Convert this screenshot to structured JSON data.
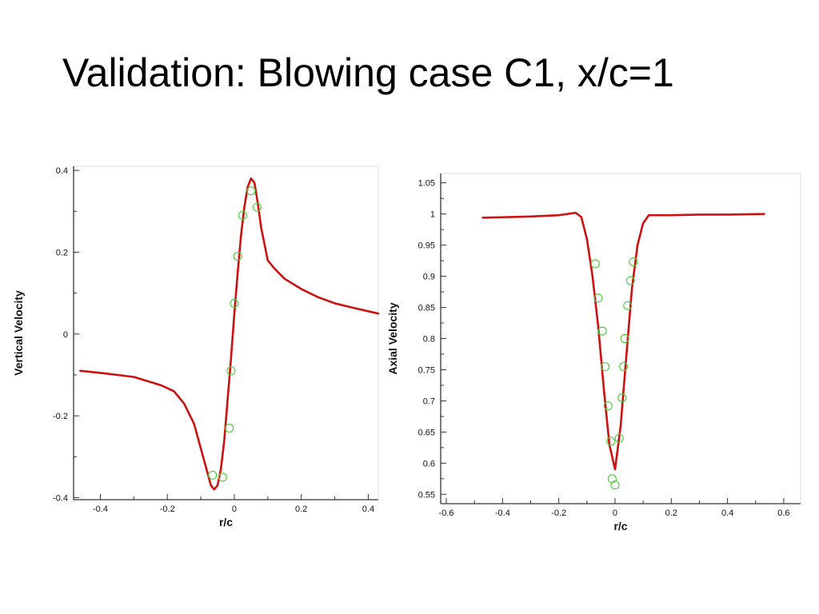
{
  "slide": {
    "title": "Validation: Blowing case C1, x/c=1"
  },
  "colors": {
    "curve": "#cc1111",
    "markers": "#55cc44",
    "axis": "#333333",
    "background": "#ffffff"
  },
  "chart_data": [
    {
      "type": "line",
      "title": "",
      "xlabel": "r/c",
      "ylabel": "Vertical Velocity",
      "xlim": [
        -0.48,
        0.43
      ],
      "ylim": [
        -0.405,
        0.41
      ],
      "xticks": [
        -0.4,
        -0.2,
        0,
        0.2,
        0.4
      ],
      "xtick_labels": [
        "-0.4",
        "-0.2",
        "0",
        "0.2",
        "0.4"
      ],
      "yticks": [
        -0.4,
        -0.2,
        0,
        0.2,
        0.4
      ],
      "ytick_labels": [
        "-0.4",
        "-0.2",
        "0",
        "0.2",
        "0.4"
      ],
      "grid": false,
      "series": [
        {
          "style": "line",
          "x": [
            -0.46,
            -0.4,
            -0.3,
            -0.22,
            -0.18,
            -0.15,
            -0.12,
            -0.1,
            -0.08,
            -0.07,
            -0.06,
            -0.05,
            -0.04,
            -0.03,
            -0.02,
            -0.01,
            0,
            0.01,
            0.02,
            0.03,
            0.04,
            0.05,
            0.06,
            0.07,
            0.08,
            0.1,
            0.12,
            0.15,
            0.2,
            0.25,
            0.3,
            0.35,
            0.43
          ],
          "y": [
            -0.09,
            -0.095,
            -0.105,
            -0.125,
            -0.14,
            -0.17,
            -0.22,
            -0.28,
            -0.34,
            -0.37,
            -0.38,
            -0.37,
            -0.33,
            -0.26,
            -0.16,
            -0.06,
            0.05,
            0.15,
            0.24,
            0.31,
            0.36,
            0.38,
            0.37,
            0.32,
            0.26,
            0.18,
            0.16,
            0.135,
            0.11,
            0.09,
            0.075,
            0.065,
            0.05
          ]
        },
        {
          "style": "markers",
          "x": [
            -0.065,
            -0.035,
            -0.015,
            -0.01,
            0.0,
            0.01,
            0.025,
            0.05,
            0.068
          ],
          "y": [
            -0.345,
            -0.35,
            -0.23,
            -0.09,
            0.075,
            0.19,
            0.29,
            0.35,
            0.31
          ]
        }
      ]
    },
    {
      "type": "line",
      "title": "",
      "xlabel": "r/c",
      "ylabel": "Axial Velocity",
      "xlim": [
        -0.62,
        0.66
      ],
      "ylim": [
        0.535,
        1.065
      ],
      "xticks": [
        -0.6,
        -0.4,
        -0.2,
        0,
        0.2,
        0.4,
        0.6
      ],
      "xtick_labels": [
        "-0.6",
        "-0.4",
        "-0.2",
        "0",
        "0.2",
        "0.4",
        "0.6"
      ],
      "yticks": [
        0.55,
        0.6,
        0.65,
        0.7,
        0.75,
        0.8,
        0.85,
        0.9,
        0.95,
        1,
        1.05
      ],
      "ytick_labels": [
        "0.55",
        "0.6",
        "0.65",
        "0.7",
        "0.75",
        "0.8",
        "0.85",
        "0.9",
        "0.95",
        "1",
        "1.05"
      ],
      "grid": false,
      "series": [
        {
          "style": "line",
          "x": [
            -0.47,
            -0.3,
            -0.2,
            -0.14,
            -0.12,
            -0.1,
            -0.08,
            -0.06,
            -0.04,
            -0.02,
            0,
            0.02,
            0.04,
            0.06,
            0.08,
            0.1,
            0.12,
            0.2,
            0.3,
            0.4,
            0.53
          ],
          "y": [
            0.994,
            0.996,
            0.998,
            1.002,
            0.995,
            0.96,
            0.9,
            0.82,
            0.72,
            0.63,
            0.59,
            0.66,
            0.77,
            0.88,
            0.95,
            0.985,
            0.998,
            0.998,
            0.999,
            0.999,
            1.0
          ]
        },
        {
          "style": "markers",
          "x": [
            -0.07,
            -0.06,
            -0.045,
            -0.035,
            -0.025,
            -0.015,
            -0.01,
            0.0,
            0.015,
            0.025,
            0.03,
            0.035,
            0.045,
            0.055,
            0.065
          ],
          "y": [
            0.92,
            0.865,
            0.812,
            0.755,
            0.692,
            0.635,
            0.575,
            0.565,
            0.64,
            0.705,
            0.755,
            0.8,
            0.853,
            0.893,
            0.923
          ]
        }
      ]
    }
  ]
}
